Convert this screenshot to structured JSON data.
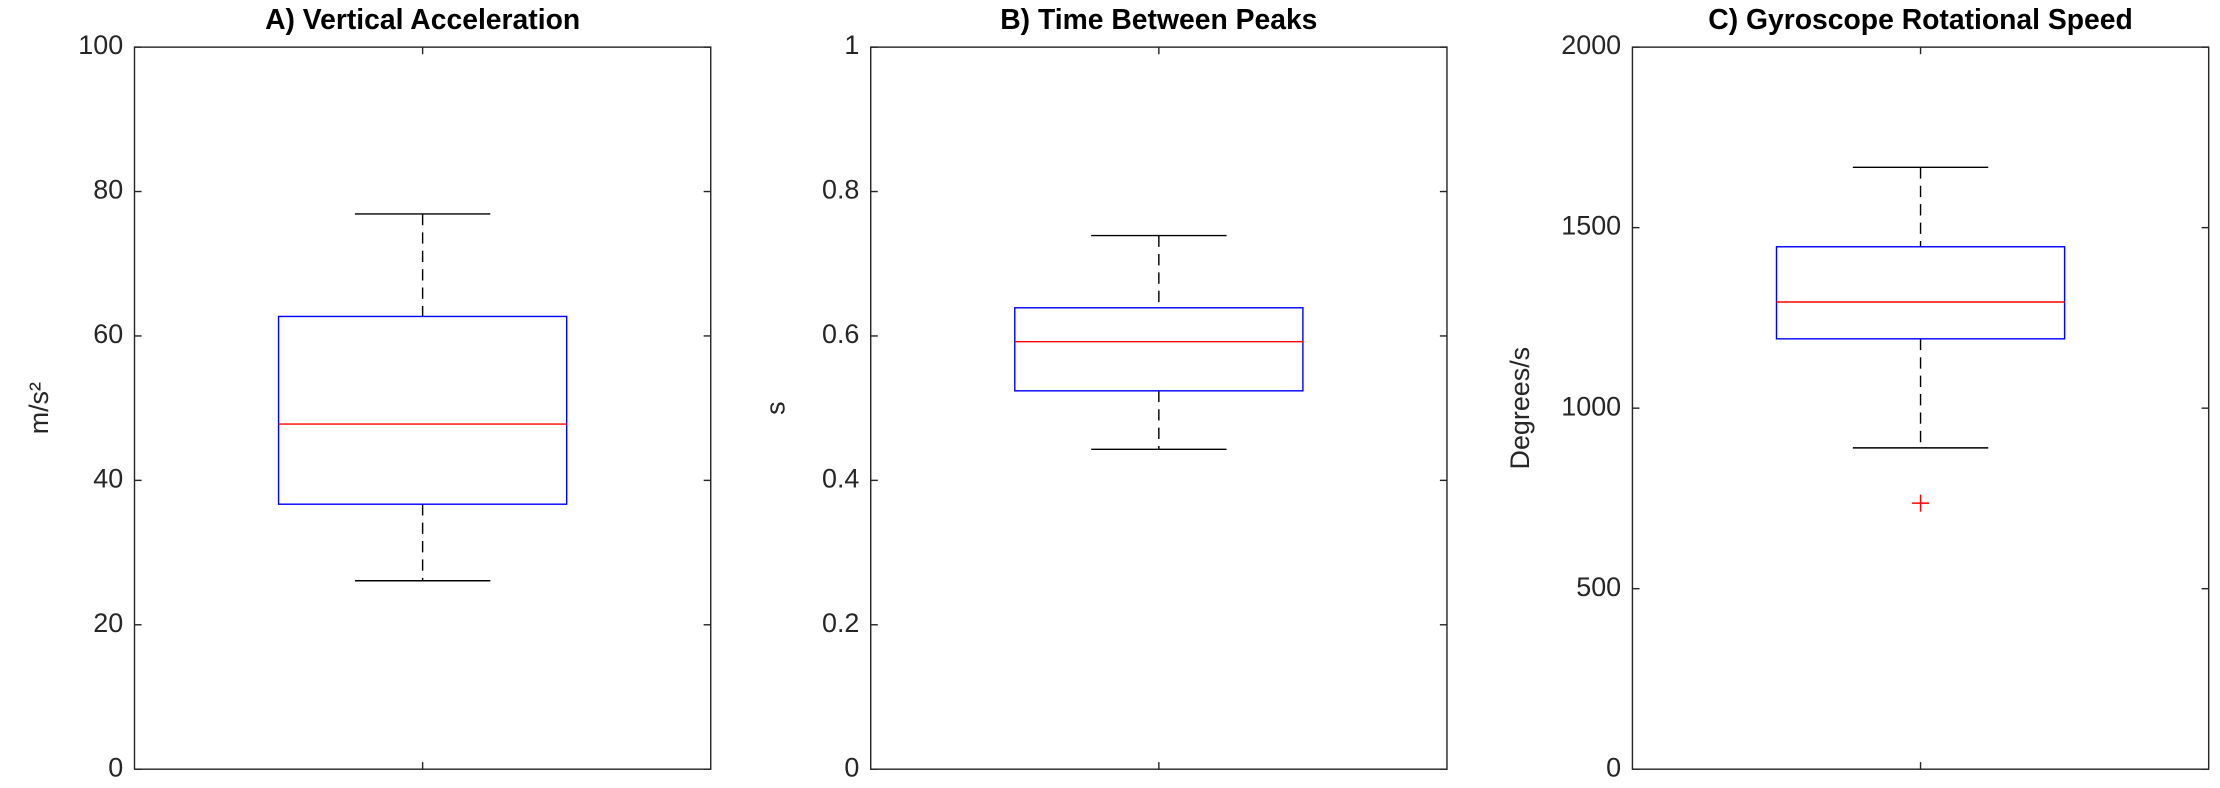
{
  "chart_data": [
    {
      "type": "box",
      "title": "A) Vertical Acceleration",
      "ylabel": "m/s²",
      "ylim": [
        0,
        100
      ],
      "yticks": [
        0,
        20,
        40,
        60,
        80,
        100
      ],
      "whisker_low": 26.1,
      "q1": 36.7,
      "median": 47.8,
      "q3": 62.7,
      "whisker_high": 76.9,
      "box_color": "#0000ff",
      "median_color": "#ff0000",
      "whisker_color": "#000000",
      "outlier_color": "#ff0000"
    },
    {
      "type": "box",
      "title": "B) Time Between Peaks",
      "ylabel": "s",
      "ylim": [
        0,
        1
      ],
      "yticks": [
        0,
        0.2,
        0.4,
        0.6,
        0.8,
        1
      ],
      "whisker_low": 0.443,
      "q1": 0.524,
      "median": 0.592,
      "q3": 0.639,
      "whisker_high": 0.739,
      "box_color": "#0000ff",
      "median_color": "#ff0000",
      "whisker_color": "#000000",
      "outlier_color": "#ff0000"
    },
    {
      "type": "box",
      "title": "C) Gyroscope Rotational Speed",
      "ylabel": "Degrees/s",
      "ylim": [
        0,
        2000
      ],
      "yticks": [
        0,
        500,
        1000,
        1500,
        2000
      ],
      "whisker_low": 890,
      "q1": 1192,
      "median": 1294,
      "q3": 1447,
      "whisker_high": 1667,
      "outliers": [
        737
      ],
      "box_color": "#0000ff",
      "median_color": "#ff0000",
      "whisker_color": "#000000",
      "outlier_color": "#ff0000"
    }
  ]
}
